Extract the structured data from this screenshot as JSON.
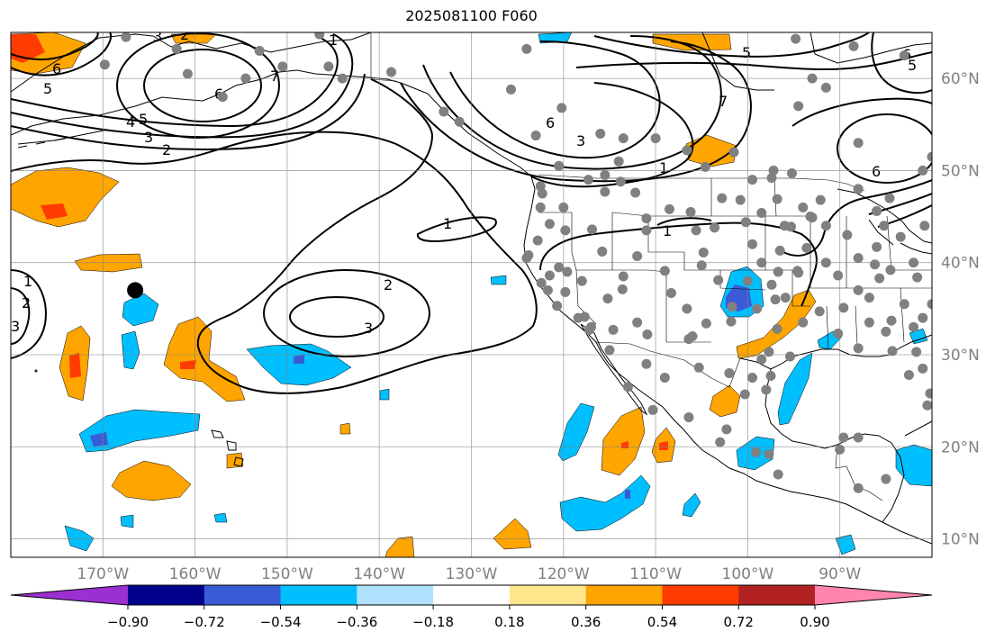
{
  "title": "2025081100 F060",
  "map": {
    "projection": "plate-carree",
    "extent": {
      "lon_min": -180,
      "lon_max": -80,
      "lat_min": 8,
      "lat_max": 65
    },
    "gridlines": true,
    "axis_color": "#808080",
    "lon_ticks": [
      {
        "value": -170,
        "label": "170°W"
      },
      {
        "value": -160,
        "label": "160°W"
      },
      {
        "value": -150,
        "label": "150°W"
      },
      {
        "value": -140,
        "label": "140°W"
      },
      {
        "value": -130,
        "label": "130°W"
      },
      {
        "value": -120,
        "label": "120°W"
      },
      {
        "value": -110,
        "label": "110°W"
      },
      {
        "value": -100,
        "label": "100°W"
      },
      {
        "value": -90,
        "label": "90°W"
      }
    ],
    "lat_ticks": [
      {
        "value": 10,
        "label": "10°N"
      },
      {
        "value": 20,
        "label": "20°N"
      },
      {
        "value": 30,
        "label": "30°N"
      },
      {
        "value": 40,
        "label": "40°N"
      },
      {
        "value": 50,
        "label": "50°N"
      },
      {
        "value": 60,
        "label": "60°N"
      }
    ]
  },
  "colorbar": {
    "extend": "both",
    "ticks": [
      "−0.90",
      "−0.72",
      "−0.54",
      "−0.36",
      "−0.18",
      "0.18",
      "0.36",
      "0.54",
      "0.72",
      "0.90"
    ],
    "colors": [
      "#9b30d0",
      "#00008b",
      "#3a5bd6",
      "#00bfff",
      "#b0e2ff",
      "#ffffff",
      "#ffe68a",
      "#ffa500",
      "#ff3c00",
      "#b22222",
      "#ff85b0"
    ]
  },
  "contour_labels": [
    "6",
    "5",
    "4",
    "5",
    "3",
    "2",
    "6",
    "7",
    "1",
    "3",
    "2",
    "6",
    "3",
    "5",
    "1",
    "7",
    "6",
    "5",
    "6",
    "1",
    "1",
    "2",
    "3",
    "1",
    "2",
    "3"
  ],
  "station_marker": {
    "lon": -166.5,
    "lat": 37,
    "color": "#000000"
  },
  "station_points_color": "#808080"
}
